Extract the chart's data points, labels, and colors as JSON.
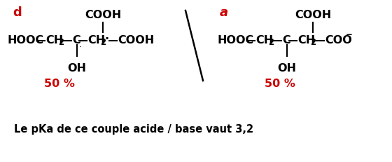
{
  "bg_color": "#ffffff",
  "text_color": "#000000",
  "red_color": "#cc0000",
  "label_d": "d",
  "label_a": "a",
  "percent_left": "50 %",
  "percent_right": "50 %",
  "footer": "Le pKa de ce couple acide / base vaut 3,2",
  "figsize": [
    5.6,
    2.31
  ],
  "dpi": 100,
  "dot_char": "·"
}
